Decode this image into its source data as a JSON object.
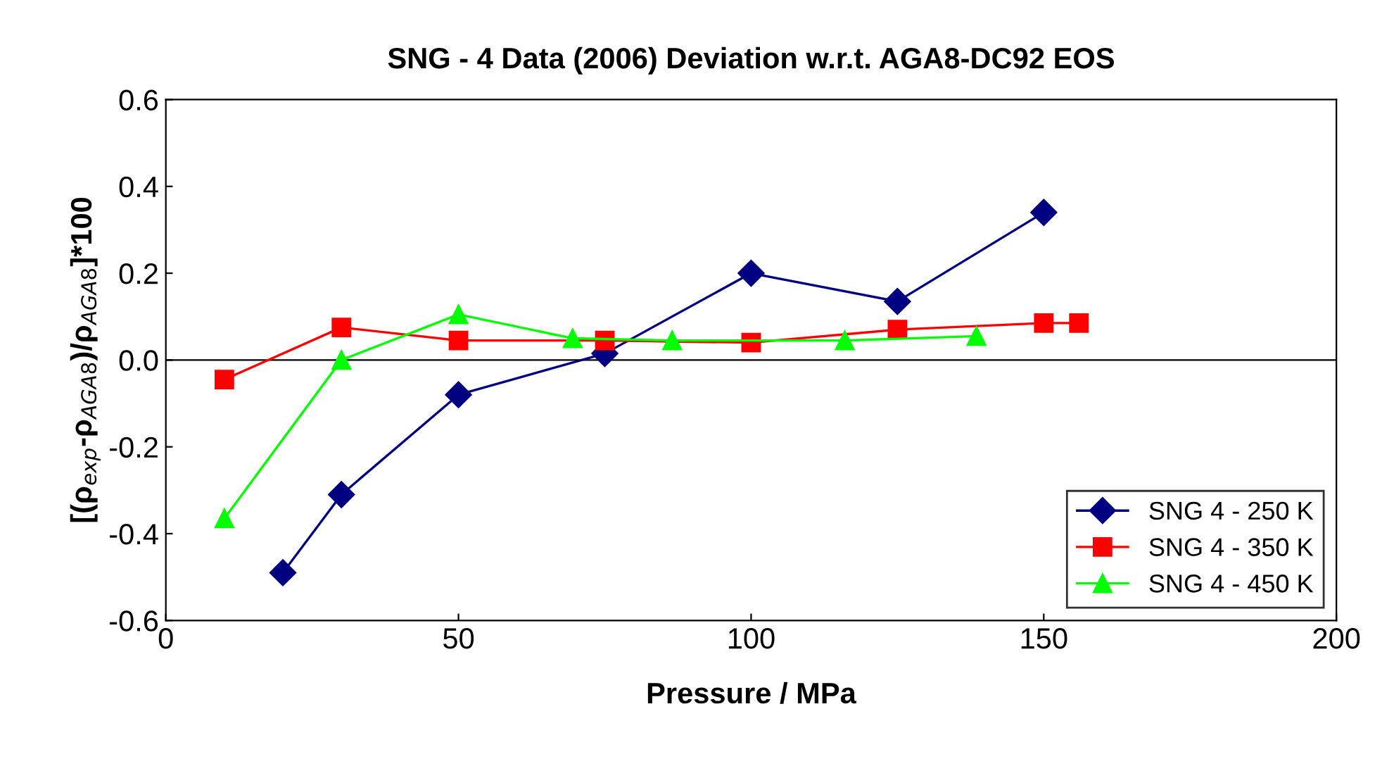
{
  "chart_data": {
    "type": "line",
    "title": "SNG - 4 Data (2006) Deviation w.r.t. AGA8-DC92 EOS",
    "xlabel": "Pressure / MPa",
    "ylabel": "[(ρ$_{exp}$-ρ$_{AGA8}$)/ρ$_{AGA8}$]*100",
    "xlim": [
      0,
      200
    ],
    "xticks": [
      0,
      50,
      100,
      150,
      200
    ],
    "ylim": [
      -0.6,
      0.6
    ],
    "yticks": [
      {
        "value": -0.6,
        "label": "-0.6"
      },
      {
        "value": -0.4,
        "label": "-0.4"
      },
      {
        "value": -0.2,
        "label": "-0.2"
      },
      {
        "value": 0,
        "label": "0.0"
      },
      {
        "value": 0.2,
        "label": "0.2"
      },
      {
        "value": 0.4,
        "label": "0.4"
      },
      {
        "value": 0.6,
        "label": "0.6"
      }
    ],
    "grid": false,
    "legend": "bottom right",
    "ref_lines": [
      {
        "axis": "y",
        "value": 0,
        "color": "#000000"
      }
    ],
    "series": [
      {
        "name": "SNG 4 - 250 K",
        "color": "#000080",
        "marker": "diamond",
        "x": [
          20,
          30,
          50,
          75,
          100,
          125,
          150
        ],
        "values": [
          -0.49,
          -0.31,
          -0.08,
          0.015,
          0.2,
          0.135,
          0.34
        ]
      },
      {
        "name": "SNG 4 - 350 K",
        "color": "#ff0000",
        "marker": "square",
        "x": [
          10,
          30,
          50,
          75,
          100,
          125,
          150,
          156
        ],
        "values": [
          -0.045,
          0.075,
          0.045,
          0.045,
          0.04,
          0.07,
          0.085,
          0.085
        ]
      },
      {
        "name": "SNG 4 - 450 K",
        "color": "#00ff00",
        "marker": "triangle",
        "x": [
          10,
          30,
          50,
          69.5,
          86.5,
          116,
          138.5
        ],
        "values": [
          -0.365,
          0.0,
          0.105,
          0.05,
          0.045,
          0.045,
          0.055
        ]
      }
    ]
  }
}
